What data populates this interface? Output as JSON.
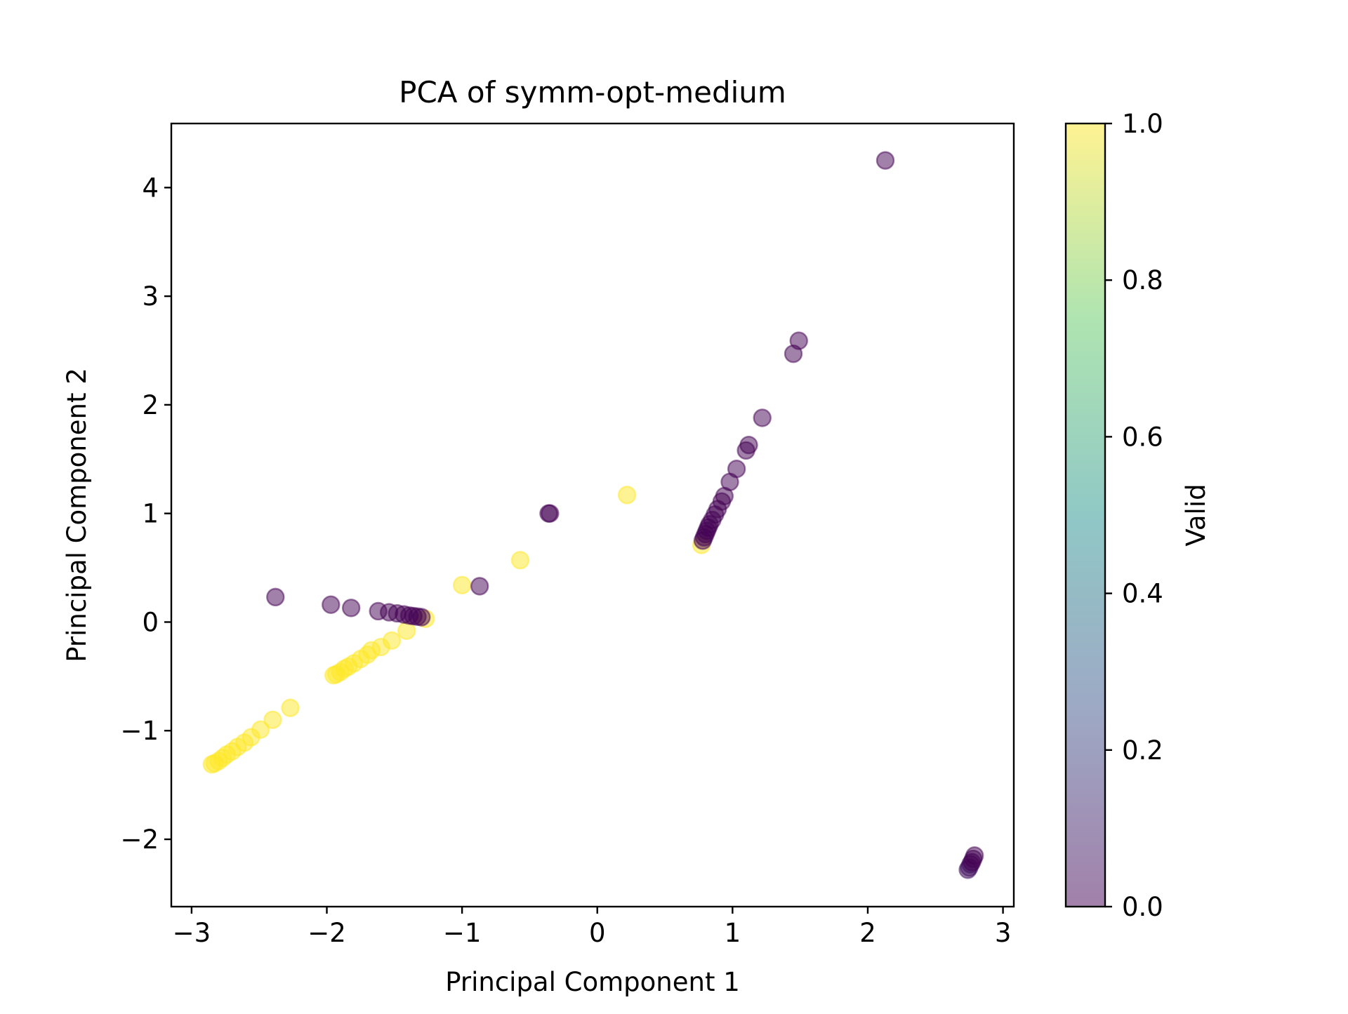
{
  "chart_data": {
    "type": "scatter",
    "title": "PCA of symm-opt-medium",
    "xlabel": "Principal Component 1",
    "ylabel": "Principal Component 2",
    "xlim": [
      -3.15,
      3.08
    ],
    "ylim": [
      -2.62,
      4.59
    ],
    "xticks": [
      -3,
      -2,
      -1,
      0,
      1,
      2,
      3
    ],
    "yticks": [
      -2,
      -1,
      0,
      1,
      2,
      3,
      4
    ],
    "xtick_labels": [
      "−3",
      "−2",
      "−1",
      "0",
      "1",
      "2",
      "3"
    ],
    "ytick_labels": [
      "−2",
      "−1",
      "0",
      "1",
      "2",
      "3",
      "4"
    ],
    "grid": false,
    "colormap": "viridis",
    "colormap_stops": [
      "#440154",
      "#3b528b",
      "#21918c",
      "#5ec962",
      "#fde725"
    ],
    "point_alpha": 0.5,
    "colorbar": {
      "label": "Valid",
      "range": [
        0,
        1
      ],
      "ticks": [
        0.0,
        0.2,
        0.4,
        0.6,
        0.8,
        1.0
      ],
      "tick_labels": [
        "0.0",
        "0.2",
        "0.4",
        "0.6",
        "0.8",
        "1.0"
      ]
    },
    "points": [
      {
        "x": -2.85,
        "y": -1.31,
        "c": 1
      },
      {
        "x": -2.83,
        "y": -1.3,
        "c": 1
      },
      {
        "x": -2.8,
        "y": -1.28,
        "c": 1
      },
      {
        "x": -2.77,
        "y": -1.25,
        "c": 1
      },
      {
        "x": -2.74,
        "y": -1.22,
        "c": 1
      },
      {
        "x": -2.7,
        "y": -1.19,
        "c": 1
      },
      {
        "x": -2.66,
        "y": -1.15,
        "c": 1
      },
      {
        "x": -2.61,
        "y": -1.11,
        "c": 1
      },
      {
        "x": -2.56,
        "y": -1.06,
        "c": 1
      },
      {
        "x": -2.49,
        "y": -0.99,
        "c": 1
      },
      {
        "x": -2.4,
        "y": -0.9,
        "c": 1
      },
      {
        "x": -2.27,
        "y": -0.79,
        "c": 1
      },
      {
        "x": -1.95,
        "y": -0.49,
        "c": 1
      },
      {
        "x": -1.93,
        "y": -0.48,
        "c": 1
      },
      {
        "x": -1.9,
        "y": -0.46,
        "c": 1
      },
      {
        "x": -1.87,
        "y": -0.43,
        "c": 1
      },
      {
        "x": -1.84,
        "y": -0.41,
        "c": 1
      },
      {
        "x": -1.8,
        "y": -0.38,
        "c": 1
      },
      {
        "x": -1.75,
        "y": -0.34,
        "c": 1
      },
      {
        "x": -1.7,
        "y": -0.3,
        "c": 1
      },
      {
        "x": -1.67,
        "y": -0.26,
        "c": 1
      },
      {
        "x": -1.6,
        "y": -0.23,
        "c": 1
      },
      {
        "x": -1.52,
        "y": -0.17,
        "c": 1
      },
      {
        "x": -1.41,
        "y": -0.08,
        "c": 1
      },
      {
        "x": -1.27,
        "y": 0.03,
        "c": 1
      },
      {
        "x": -1.0,
        "y": 0.34,
        "c": 1
      },
      {
        "x": -0.57,
        "y": 0.57,
        "c": 1
      },
      {
        "x": 0.22,
        "y": 1.17,
        "c": 1
      },
      {
        "x": 0.77,
        "y": 0.71,
        "c": 1
      },
      {
        "x": -2.38,
        "y": 0.23,
        "c": 0
      },
      {
        "x": -1.97,
        "y": 0.16,
        "c": 0
      },
      {
        "x": -1.82,
        "y": 0.13,
        "c": 0
      },
      {
        "x": -1.62,
        "y": 0.1,
        "c": 0
      },
      {
        "x": -1.54,
        "y": 0.09,
        "c": 0
      },
      {
        "x": -1.48,
        "y": 0.08,
        "c": 0
      },
      {
        "x": -1.43,
        "y": 0.07,
        "c": 0
      },
      {
        "x": -1.39,
        "y": 0.06,
        "c": 0
      },
      {
        "x": -1.36,
        "y": 0.055,
        "c": 0
      },
      {
        "x": -1.33,
        "y": 0.05,
        "c": 0
      },
      {
        "x": -1.3,
        "y": 0.045,
        "c": 0
      },
      {
        "x": -0.87,
        "y": 0.33,
        "c": 0
      },
      {
        "x": -0.36,
        "y": 1.0,
        "c": 0
      },
      {
        "x": -0.35,
        "y": 1.0,
        "c": 0
      },
      {
        "x": 0.78,
        "y": 0.75,
        "c": 0
      },
      {
        "x": 0.79,
        "y": 0.78,
        "c": 0
      },
      {
        "x": 0.8,
        "y": 0.81,
        "c": 0
      },
      {
        "x": 0.81,
        "y": 0.84,
        "c": 0
      },
      {
        "x": 0.82,
        "y": 0.87,
        "c": 0
      },
      {
        "x": 0.83,
        "y": 0.9,
        "c": 0
      },
      {
        "x": 0.85,
        "y": 0.94,
        "c": 0
      },
      {
        "x": 0.87,
        "y": 0.99,
        "c": 0
      },
      {
        "x": 0.89,
        "y": 1.04,
        "c": 0
      },
      {
        "x": 0.92,
        "y": 1.11,
        "c": 0
      },
      {
        "x": 0.94,
        "y": 1.16,
        "c": 0
      },
      {
        "x": 0.98,
        "y": 1.29,
        "c": 0
      },
      {
        "x": 1.03,
        "y": 1.41,
        "c": 0
      },
      {
        "x": 1.1,
        "y": 1.58,
        "c": 0
      },
      {
        "x": 1.12,
        "y": 1.63,
        "c": 0
      },
      {
        "x": 1.22,
        "y": 1.88,
        "c": 0
      },
      {
        "x": 1.45,
        "y": 2.47,
        "c": 0
      },
      {
        "x": 1.49,
        "y": 2.59,
        "c": 0
      },
      {
        "x": 2.13,
        "y": 4.25,
        "c": 0
      },
      {
        "x": 2.74,
        "y": -2.28,
        "c": 0.05
      },
      {
        "x": 2.75,
        "y": -2.26,
        "c": 0.05
      },
      {
        "x": 2.76,
        "y": -2.23,
        "c": 0.05
      },
      {
        "x": 2.77,
        "y": -2.21,
        "c": 0
      },
      {
        "x": 2.78,
        "y": -2.18,
        "c": 0
      },
      {
        "x": 2.79,
        "y": -2.15,
        "c": 0
      }
    ]
  }
}
